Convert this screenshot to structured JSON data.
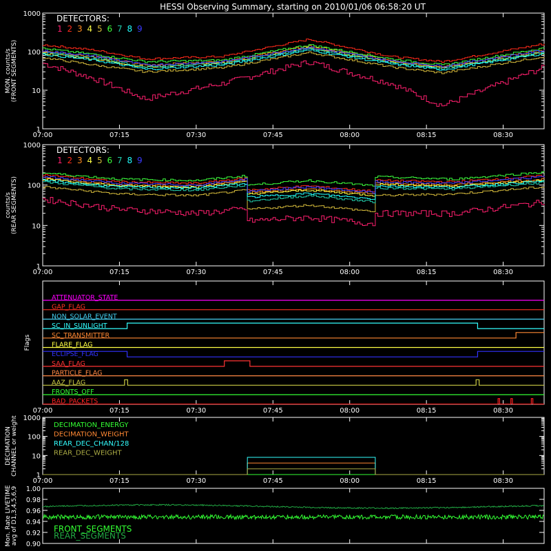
{
  "title": "HESSI Observing Summary, starting on 2010/01/06 06:58:20 UT",
  "colors": {
    "background": "#000000",
    "axis": "#ffffff",
    "det": [
      "#ff1f6e",
      "#ff2a1a",
      "#ff8a1f",
      "#ffff44",
      "#d2b83a",
      "#3cff3c",
      "#22ccaa",
      "#22ffff",
      "#3a3aff"
    ],
    "flags": [
      "#ff00ff",
      "#ff3322",
      "#44ccee",
      "#33ffff",
      "#ff8833",
      "#ffff44",
      "#3333ff",
      "#ff3333",
      "#ff8844",
      "#cccc44",
      "#33ff33",
      "#ff2222"
    ],
    "decim": [
      "#33ff33",
      "#ff8833",
      "#33ffff",
      "#aaaa44"
    ],
    "live_front": "#33ff33",
    "live_rear": "#22aa44"
  },
  "x_ticks": [
    "07:00",
    "07:15",
    "07:30",
    "07:45",
    "08:00",
    "08:15",
    "08:30"
  ],
  "chart_data": [
    {
      "id": "front",
      "type": "line",
      "ylabel": [
        "MON. counts/s",
        "(FRONT SEGMENTS)"
      ],
      "y_scale": "log",
      "ylim": [
        1,
        1000
      ],
      "y_ticks": [
        "1",
        "10",
        "100",
        "1000"
      ],
      "legend_title": "DETECTORS:",
      "legend_items": [
        "1",
        "2",
        "3",
        "4",
        "5",
        "6",
        "7",
        "8",
        "9"
      ],
      "x_minutes": [
        0,
        10,
        20,
        35,
        52,
        68,
        78,
        98
      ],
      "series": [
        {
          "values": [
            50,
            20,
            6,
            15,
            55,
            15,
            4,
            40
          ]
        },
        {
          "values": [
            150,
            110,
            65,
            75,
            210,
            75,
            55,
            160
          ]
        },
        {
          "values": [
            100,
            75,
            45,
            55,
            140,
            60,
            40,
            110
          ]
        },
        {
          "values": [
            90,
            65,
            40,
            50,
            125,
            55,
            38,
            95
          ]
        },
        {
          "values": [
            70,
            45,
            30,
            38,
            95,
            40,
            28,
            75
          ]
        },
        {
          "values": [
            120,
            85,
            55,
            60,
            150,
            65,
            45,
            125
          ]
        },
        {
          "values": [
            95,
            70,
            40,
            50,
            120,
            52,
            36,
            100
          ]
        },
        {
          "values": [
            85,
            60,
            35,
            45,
            110,
            48,
            34,
            90
          ]
        },
        {
          "values": [
            105,
            78,
            45,
            55,
            130,
            58,
            42,
            110
          ]
        }
      ]
    },
    {
      "id": "rear",
      "type": "line",
      "ylabel": [
        "counts/s",
        "(REAR SEGMENTS)"
      ],
      "y_scale": "log",
      "ylim": [
        1,
        1000
      ],
      "y_ticks": [
        "1",
        "10",
        "100",
        "1000"
      ],
      "legend_title": "DETECTORS:",
      "legend_items": [
        "1",
        "2",
        "3",
        "4",
        "5",
        "6",
        "7",
        "8",
        "9"
      ],
      "x_minutes": [
        0,
        15,
        30,
        39.9,
        40,
        52,
        64.9,
        65,
        80,
        98
      ],
      "series": [
        {
          "values": [
            45,
            25,
            20,
            26,
            13,
            16,
            11,
            20,
            20,
            38
          ]
        },
        {
          "values": [
            180,
            120,
            110,
            150,
            75,
            95,
            70,
            130,
            120,
            170
          ]
        },
        {
          "values": [
            150,
            100,
            95,
            130,
            65,
            80,
            60,
            110,
            100,
            140
          ]
        },
        {
          "values": [
            140,
            95,
            90,
            120,
            60,
            75,
            55,
            105,
            95,
            130
          ]
        },
        {
          "values": [
            90,
            60,
            55,
            75,
            25,
            32,
            22,
            55,
            60,
            90
          ]
        },
        {
          "values": [
            200,
            140,
            130,
            170,
            100,
            130,
            95,
            160,
            140,
            210
          ]
        },
        {
          "values": [
            120,
            80,
            75,
            100,
            40,
            55,
            38,
            85,
            80,
            115
          ]
        },
        {
          "values": [
            130,
            90,
            85,
            110,
            50,
            62,
            45,
            95,
            88,
            125
          ]
        },
        {
          "values": [
            160,
            110,
            100,
            140,
            70,
            90,
            65,
            120,
            110,
            160
          ]
        }
      ]
    },
    {
      "id": "flags",
      "type": "line",
      "ylabel": [
        "Flags"
      ],
      "items": [
        {
          "label": "ATTENUATOR_STATE",
          "steps": []
        },
        {
          "label": "GAP_FLAG",
          "steps": []
        },
        {
          "label": "NON_SOLAR_EVENT",
          "steps": []
        },
        {
          "label": "SC_IN_SUNLIGHT",
          "steps": [
            [
              0,
              0
            ],
            [
              16.5,
              1
            ],
            [
              85,
              0
            ]
          ]
        },
        {
          "label": "SC_TRANSMITTER",
          "steps": [
            [
              0,
              0
            ],
            [
              92.5,
              1
            ]
          ]
        },
        {
          "label": "FLARE_FLAG",
          "steps": []
        },
        {
          "label": "ECLIPSE_FLAG",
          "steps": [
            [
              0,
              1
            ],
            [
              16.5,
              0
            ],
            [
              85,
              1
            ]
          ]
        },
        {
          "label": "SAA_FLAG",
          "steps": [
            [
              0,
              0
            ],
            [
              35.5,
              1
            ],
            [
              40.5,
              0
            ]
          ]
        },
        {
          "label": "PARTICLE_FLAG",
          "steps": []
        },
        {
          "label": "AAZ_FLAG",
          "steps": [
            [
              0,
              0
            ],
            [
              16,
              1
            ],
            [
              16.6,
              0
            ],
            [
              84.7,
              1
            ],
            [
              85.3,
              0
            ]
          ]
        },
        {
          "label": "FRONTS_OFF",
          "steps": []
        },
        {
          "label": "BAD_PACKETS",
          "steps": [
            [
              0,
              0
            ],
            [
              89,
              1
            ],
            [
              89.3,
              0
            ],
            [
              91.5,
              1
            ],
            [
              91.8,
              0
            ],
            [
              95.5,
              1
            ],
            [
              95.8,
              0
            ]
          ]
        }
      ]
    },
    {
      "id": "decimation",
      "type": "line",
      "ylabel": [
        "DECIMATION",
        "CHANNEL or weight"
      ],
      "y_scale": "log",
      "ylim": [
        1,
        1000
      ],
      "y_ticks": [
        "1",
        "10",
        "100",
        "1000"
      ],
      "series": [
        {
          "name": "DECIMATION_ENERGY",
          "x": [
            0,
            98
          ],
          "values": [
            1,
            1
          ]
        },
        {
          "name": "DECIMATION_WEIGHT",
          "x": [
            0,
            40,
            40.01,
            65,
            65.01,
            98
          ],
          "values": [
            1,
            1,
            4,
            4,
            1,
            1
          ]
        },
        {
          "name": "REAR_DEC_CHAN/128",
          "x": [
            0,
            40,
            40.01,
            65,
            65.01,
            98
          ],
          "values": [
            1,
            1,
            8,
            8,
            1,
            1
          ]
        },
        {
          "name": "REAR_DEC_WEIGHT",
          "x": [
            0,
            40,
            40.01,
            65,
            65.01,
            98
          ],
          "values": [
            1,
            1,
            2,
            2,
            1,
            1
          ]
        }
      ]
    },
    {
      "id": "livetime",
      "type": "line",
      "ylabel": [
        "Mon. Rate LIVETIME",
        "avg of D1,3,4,5,6,9"
      ],
      "ylim": [
        0.9,
        1.0
      ],
      "y_ticks": [
        "0.90",
        "0.92",
        "0.94",
        "0.96",
        "0.98",
        "1.00"
      ],
      "series": [
        {
          "name": "FRONT_SEGMENTS",
          "mean": 0.948,
          "noise": 0.004
        },
        {
          "name": "REAR_SEGMENTS",
          "mean": 0.967,
          "amplitude": 0.003,
          "noise": 0.0012
        }
      ]
    }
  ]
}
